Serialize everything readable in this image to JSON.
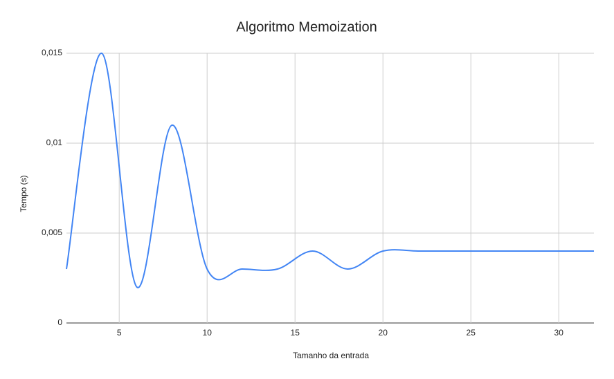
{
  "chart_data": {
    "type": "line",
    "title": "Algoritmo Memoization",
    "x_label": "Tamanho da entrada",
    "y_label": "Tempo (s)",
    "x": [
      2,
      4,
      6,
      8,
      10,
      12,
      14,
      16,
      18,
      20,
      22,
      24,
      26,
      28,
      30,
      32
    ],
    "series": [
      {
        "name": "Tempo (s)",
        "color": "#4285f4",
        "values": [
          0.003,
          0.015,
          0.002,
          0.011,
          0.003,
          0.003,
          0.003,
          0.004,
          0.003,
          0.004,
          0.004,
          0.004,
          0.004,
          0.004,
          0.004,
          0.004
        ]
      }
    ],
    "xlim": [
      2,
      32
    ],
    "xticks": [
      5,
      10,
      15,
      20,
      25,
      30
    ],
    "ylim": [
      0,
      0.015
    ],
    "yticks": [
      0,
      {
        "value": 0.005,
        "label": "0,005"
      },
      {
        "value": 0.01,
        "label": "0,01"
      },
      {
        "value": 0.015,
        "label": "0,015"
      }
    ],
    "grid": true
  }
}
